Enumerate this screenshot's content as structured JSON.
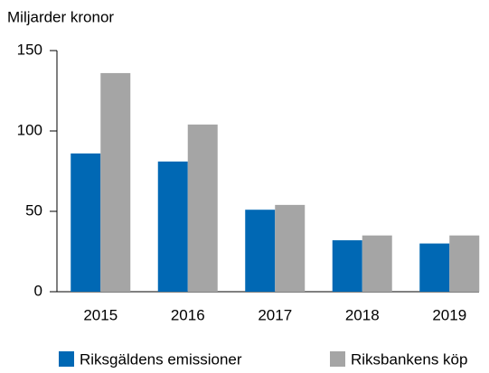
{
  "chart_data": {
    "type": "bar",
    "y_label": "Miljarder kronor",
    "categories": [
      "2015",
      "2016",
      "2017",
      "2018",
      "2019"
    ],
    "series": [
      {
        "name": "Riksgäldens emissioner",
        "color": "#0068b4",
        "values": [
          86,
          81,
          51,
          32,
          30
        ]
      },
      {
        "name": "Riksbankens köp",
        "color": "#a5a5a5",
        "values": [
          136,
          104,
          54,
          35,
          35
        ]
      }
    ],
    "ylim": [
      0,
      150
    ],
    "yticks": [
      0,
      50,
      100,
      150
    ],
    "grid": false,
    "legend": "bottom"
  }
}
